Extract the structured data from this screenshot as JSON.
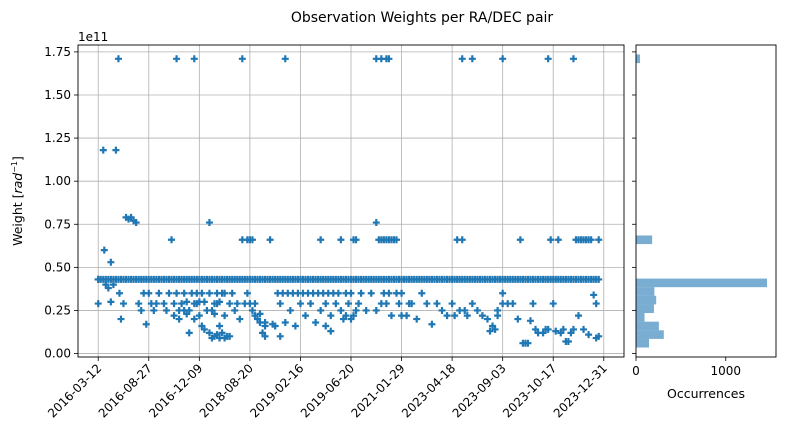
{
  "chart_data": [
    {
      "type": "scatter",
      "title": "Observation Weights per RA/DEC pair",
      "ylabel_main": "Weight [",
      "ylabel_sup": "−1",
      "ylabel_italic": "rad",
      "ylabel_end": "]",
      "y_exponent": "1e11",
      "x_tick_labels": [
        "2016-03-12",
        "2016-08-27",
        "2016-12-09",
        "2018-08-20",
        "2019-02-16",
        "2019-06-20",
        "2021-01-29",
        "2023-04-18",
        "2023-09-03",
        "2023-10-17",
        "2023-12-31"
      ],
      "y_ticks": [
        0.0,
        0.25,
        0.5,
        0.75,
        1.0,
        1.25,
        1.5,
        1.75
      ],
      "y_tick_labels": [
        "0.00",
        "0.25",
        "0.50",
        "0.75",
        "1.00",
        "1.25",
        "1.50",
        "1.75"
      ],
      "ylim": [
        -0.02,
        1.79
      ],
      "xlim": [
        -0.4,
        10.4
      ],
      "grid": true,
      "marker": "plus",
      "color": "#1f77b4",
      "band_value": 0.43,
      "band_range": [
        0.0,
        9.9
      ],
      "points": [
        [
          0.0,
          0.43
        ],
        [
          0.0,
          0.29
        ],
        [
          0.1,
          1.18
        ],
        [
          0.12,
          0.6
        ],
        [
          0.15,
          0.4
        ],
        [
          0.2,
          0.38
        ],
        [
          0.25,
          0.3
        ],
        [
          0.25,
          0.53
        ],
        [
          0.3,
          0.4
        ],
        [
          0.35,
          1.18
        ],
        [
          0.4,
          1.71
        ],
        [
          0.42,
          0.35
        ],
        [
          0.45,
          0.2
        ],
        [
          0.5,
          0.29
        ],
        [
          0.55,
          0.79
        ],
        [
          0.6,
          0.78
        ],
        [
          0.65,
          0.79
        ],
        [
          0.7,
          0.77
        ],
        [
          0.75,
          0.76
        ],
        [
          0.8,
          0.29
        ],
        [
          0.85,
          0.25
        ],
        [
          0.9,
          0.35
        ],
        [
          0.95,
          0.17
        ],
        [
          1.0,
          0.35
        ],
        [
          1.05,
          0.29
        ],
        [
          1.1,
          0.25
        ],
        [
          1.15,
          0.29
        ],
        [
          1.2,
          0.35
        ],
        [
          1.3,
          0.29
        ],
        [
          1.35,
          0.25
        ],
        [
          1.4,
          0.35
        ],
        [
          1.5,
          0.29
        ],
        [
          1.5,
          0.22
        ],
        [
          1.55,
          0.35
        ],
        [
          1.6,
          0.25
        ],
        [
          1.65,
          0.29
        ],
        [
          1.7,
          0.35
        ],
        [
          1.75,
          0.3
        ],
        [
          1.8,
          0.25
        ],
        [
          1.85,
          0.35
        ],
        [
          1.9,
          0.29
        ],
        [
          1.95,
          0.35
        ],
        [
          2.0,
          0.3
        ],
        [
          2.05,
          0.35
        ],
        [
          2.1,
          0.3
        ],
        [
          2.15,
          0.25
        ],
        [
          2.2,
          0.35
        ],
        [
          2.25,
          0.25
        ],
        [
          2.3,
          0.29
        ],
        [
          2.35,
          0.35
        ],
        [
          2.4,
          0.3
        ],
        [
          2.45,
          0.35
        ],
        [
          2.5,
          0.22
        ],
        [
          1.45,
          0.66
        ],
        [
          1.55,
          1.71
        ],
        [
          1.6,
          0.2
        ],
        [
          1.7,
          0.25
        ],
        [
          1.75,
          0.23
        ],
        [
          1.8,
          0.12
        ],
        [
          1.9,
          0.2
        ],
        [
          1.95,
          0.29
        ],
        [
          2.0,
          0.22
        ],
        [
          2.05,
          0.16
        ],
        [
          2.1,
          0.14
        ],
        [
          2.2,
          0.12
        ],
        [
          2.25,
          0.09
        ],
        [
          2.3,
          0.1
        ],
        [
          2.35,
          0.11
        ],
        [
          2.4,
          0.09
        ],
        [
          2.45,
          0.12
        ],
        [
          2.5,
          0.09
        ],
        [
          2.55,
          0.1
        ],
        [
          1.9,
          1.71
        ],
        [
          2.2,
          0.76
        ],
        [
          2.3,
          0.23
        ],
        [
          2.35,
          0.29
        ],
        [
          2.4,
          0.16
        ],
        [
          2.5,
          0.35
        ],
        [
          2.6,
          0.29
        ],
        [
          2.6,
          0.1
        ],
        [
          2.65,
          0.35
        ],
        [
          2.7,
          0.25
        ],
        [
          2.75,
          0.29
        ],
        [
          2.8,
          0.2
        ],
        [
          2.85,
          0.66
        ],
        [
          2.9,
          0.29
        ],
        [
          2.95,
          0.35
        ],
        [
          3.0,
          0.29
        ],
        [
          3.05,
          0.25
        ],
        [
          3.1,
          0.29
        ],
        [
          3.15,
          0.2
        ],
        [
          3.2,
          0.23
        ],
        [
          3.25,
          0.12
        ],
        [
          3.3,
          0.1
        ],
        [
          3.3,
          0.16
        ],
        [
          3.0,
          0.66
        ],
        [
          2.85,
          1.71
        ],
        [
          2.95,
          0.66
        ],
        [
          3.05,
          0.66
        ],
        [
          3.1,
          0.22
        ],
        [
          3.2,
          0.18
        ],
        [
          3.3,
          0.18
        ],
        [
          3.4,
          0.66
        ],
        [
          3.45,
          0.17
        ],
        [
          3.5,
          0.16
        ],
        [
          3.55,
          0.35
        ],
        [
          3.6,
          0.29
        ],
        [
          3.65,
          0.35
        ],
        [
          3.7,
          0.18
        ],
        [
          3.75,
          0.35
        ],
        [
          3.8,
          0.25
        ],
        [
          3.85,
          0.35
        ],
        [
          3.9,
          0.16
        ],
        [
          3.95,
          0.35
        ],
        [
          4.0,
          0.29
        ],
        [
          4.05,
          0.35
        ],
        [
          4.1,
          0.22
        ],
        [
          4.15,
          0.35
        ],
        [
          4.2,
          0.29
        ],
        [
          4.25,
          0.35
        ],
        [
          3.7,
          1.71
        ],
        [
          3.6,
          0.1
        ],
        [
          4.3,
          0.18
        ],
        [
          4.35,
          0.35
        ],
        [
          4.4,
          0.25
        ],
        [
          4.45,
          0.35
        ],
        [
          4.5,
          0.29
        ],
        [
          4.55,
          0.35
        ],
        [
          4.6,
          0.22
        ],
        [
          4.65,
          0.35
        ],
        [
          4.7,
          0.29
        ],
        [
          4.75,
          0.35
        ],
        [
          4.8,
          0.25
        ],
        [
          4.85,
          0.2
        ],
        [
          4.9,
          0.35
        ],
        [
          4.95,
          0.29
        ],
        [
          5.0,
          0.35
        ],
        [
          5.05,
          0.22
        ],
        [
          5.1,
          0.25
        ],
        [
          4.4,
          0.66
        ],
        [
          4.5,
          0.16
        ],
        [
          4.6,
          0.13
        ],
        [
          4.8,
          0.66
        ],
        [
          4.9,
          0.22
        ],
        [
          5.0,
          0.2
        ],
        [
          5.05,
          0.66
        ],
        [
          5.1,
          0.66
        ],
        [
          5.15,
          0.29
        ],
        [
          5.2,
          0.35
        ],
        [
          5.3,
          0.25
        ],
        [
          5.4,
          0.35
        ],
        [
          5.5,
          0.25
        ],
        [
          5.6,
          0.29
        ],
        [
          5.65,
          0.35
        ],
        [
          5.7,
          0.29
        ],
        [
          5.75,
          0.35
        ],
        [
          5.8,
          0.22
        ],
        [
          5.9,
          0.35
        ],
        [
          5.95,
          0.29
        ],
        [
          6.0,
          0.35
        ],
        [
          5.5,
          0.76
        ],
        [
          5.55,
          0.66
        ],
        [
          5.6,
          0.66
        ],
        [
          5.65,
          0.66
        ],
        [
          5.7,
          0.66
        ],
        [
          5.75,
          0.66
        ],
        [
          5.8,
          0.66
        ],
        [
          5.85,
          0.66
        ],
        [
          5.9,
          0.66
        ],
        [
          5.5,
          1.71
        ],
        [
          5.6,
          1.71
        ],
        [
          5.7,
          1.71
        ],
        [
          5.75,
          1.71
        ],
        [
          6.0,
          0.22
        ],
        [
          6.1,
          0.22
        ],
        [
          6.15,
          0.29
        ],
        [
          6.2,
          0.29
        ],
        [
          6.3,
          0.2
        ],
        [
          6.4,
          0.35
        ],
        [
          6.5,
          0.29
        ],
        [
          6.6,
          0.17
        ],
        [
          6.7,
          0.29
        ],
        [
          6.8,
          0.25
        ],
        [
          6.9,
          0.22
        ],
        [
          7.0,
          0.29
        ],
        [
          7.05,
          0.22
        ],
        [
          7.1,
          0.66
        ],
        [
          7.15,
          0.25
        ],
        [
          7.2,
          0.66
        ],
        [
          7.25,
          0.25
        ],
        [
          7.3,
          0.22
        ],
        [
          7.2,
          1.71
        ],
        [
          7.4,
          1.71
        ],
        [
          7.4,
          0.29
        ],
        [
          7.5,
          0.25
        ],
        [
          7.6,
          0.22
        ],
        [
          7.7,
          0.2
        ],
        [
          7.75,
          0.13
        ],
        [
          7.8,
          0.16
        ],
        [
          7.85,
          0.14
        ],
        [
          7.9,
          0.22
        ],
        [
          8.0,
          0.29
        ],
        [
          8.0,
          0.35
        ],
        [
          7.9,
          0.25
        ],
        [
          8.1,
          0.29
        ],
        [
          8.2,
          0.29
        ],
        [
          8.3,
          0.2
        ],
        [
          8.35,
          0.66
        ],
        [
          8.0,
          1.71
        ],
        [
          8.4,
          0.06
        ],
        [
          8.45,
          0.06
        ],
        [
          8.5,
          0.06
        ],
        [
          8.55,
          0.19
        ],
        [
          8.6,
          0.29
        ],
        [
          8.65,
          0.14
        ],
        [
          8.7,
          0.12
        ],
        [
          8.8,
          0.12
        ],
        [
          8.85,
          0.14
        ],
        [
          8.9,
          0.14
        ],
        [
          8.95,
          0.66
        ],
        [
          8.9,
          1.71
        ],
        [
          9.0,
          0.29
        ],
        [
          9.05,
          0.13
        ],
        [
          9.1,
          0.66
        ],
        [
          9.15,
          0.12
        ],
        [
          9.2,
          0.14
        ],
        [
          9.25,
          0.07
        ],
        [
          9.3,
          0.07
        ],
        [
          9.35,
          0.12
        ],
        [
          9.4,
          0.14
        ],
        [
          9.45,
          0.66
        ],
        [
          9.5,
          0.66
        ],
        [
          9.55,
          0.66
        ],
        [
          9.6,
          0.66
        ],
        [
          9.65,
          0.66
        ],
        [
          9.7,
          0.66
        ],
        [
          9.75,
          0.66
        ],
        [
          9.8,
          0.34
        ],
        [
          9.4,
          1.71
        ],
        [
          9.5,
          0.22
        ],
        [
          9.6,
          0.14
        ],
        [
          9.7,
          0.11
        ],
        [
          9.85,
          0.29
        ],
        [
          9.9,
          0.1
        ],
        [
          9.9,
          0.66
        ],
        [
          9.85,
          0.09
        ]
      ]
    },
    {
      "type": "bar",
      "orientation": "horizontal",
      "xlabel": "Occurrences",
      "x_ticks": [
        0,
        1000
      ],
      "x_tick_labels": [
        "0",
        "1000"
      ],
      "xlim": [
        0,
        1560
      ],
      "color": "#1f77b4",
      "bins": [
        {
          "y0": 0.035,
          "y1": 0.085,
          "count": 145
        },
        {
          "y0": 0.085,
          "y1": 0.135,
          "count": 310
        },
        {
          "y0": 0.135,
          "y1": 0.185,
          "count": 255
        },
        {
          "y0": 0.185,
          "y1": 0.235,
          "count": 95
        },
        {
          "y0": 0.235,
          "y1": 0.285,
          "count": 200
        },
        {
          "y0": 0.285,
          "y1": 0.335,
          "count": 225
        },
        {
          "y0": 0.335,
          "y1": 0.385,
          "count": 205
        },
        {
          "y0": 0.385,
          "y1": 0.435,
          "count": 1460
        },
        {
          "y0": 0.635,
          "y1": 0.685,
          "count": 180
        },
        {
          "y0": 1.685,
          "y1": 1.735,
          "count": 45
        }
      ]
    }
  ]
}
